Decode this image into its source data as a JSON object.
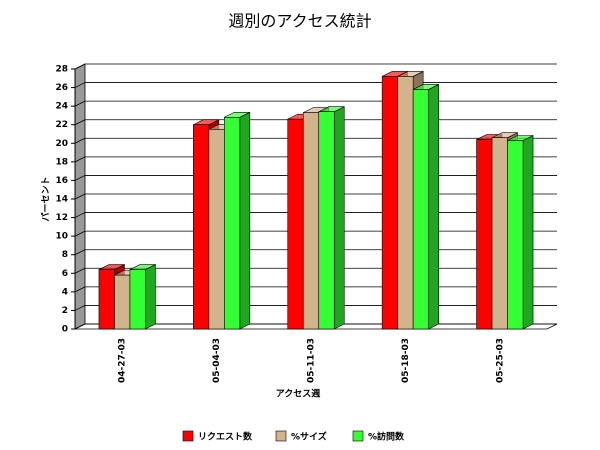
{
  "chart_data": {
    "type": "bar3d",
    "title": "週別のアクセス統計",
    "x_label": "アクセス週",
    "y_label": "パーセント",
    "categories": [
      "04-27-03",
      "05-04-03",
      "05-11-03",
      "05-18-03",
      "05-25-03"
    ],
    "series": [
      {
        "name": "リクエスト数",
        "color": "#ff0000",
        "values": [
          6.4,
          22.0,
          22.6,
          27.2,
          20.4
        ]
      },
      {
        "name": "%サイズ",
        "color": "#d2b48c",
        "values": [
          5.8,
          21.5,
          23.3,
          27.2,
          20.6
        ]
      },
      {
        "name": "%訪問数",
        "color": "#33ff33",
        "values": [
          6.4,
          22.8,
          23.4,
          25.8,
          20.3
        ]
      }
    ],
    "ylim": [
      0,
      28
    ],
    "yticks": [
      0,
      2,
      4,
      6,
      8,
      10,
      12,
      14,
      16,
      18,
      20,
      22,
      24,
      26,
      28
    ],
    "grid": true
  }
}
